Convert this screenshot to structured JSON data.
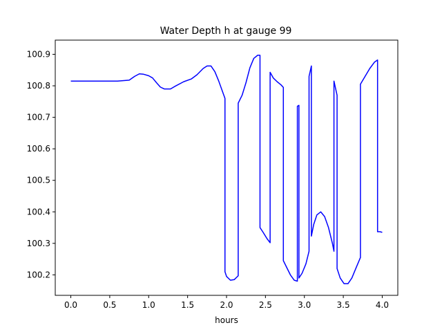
{
  "chart_data": {
    "type": "line",
    "title": "Water Depth h at gauge 99",
    "xlabel": "hours",
    "ylabel": "",
    "xlim": [
      -0.2,
      4.2
    ],
    "ylim": [
      100.135,
      100.945
    ],
    "x_ticks": [
      0.0,
      0.5,
      1.0,
      1.5,
      2.0,
      2.5,
      3.0,
      3.5,
      4.0
    ],
    "x_tick_labels": [
      "0.0",
      "0.5",
      "1.0",
      "1.5",
      "2.0",
      "2.5",
      "3.0",
      "3.5",
      "4.0"
    ],
    "y_ticks": [
      100.2,
      100.3,
      100.4,
      100.5,
      100.6,
      100.7,
      100.8,
      100.9
    ],
    "y_tick_labels": [
      "100.2",
      "100.3",
      "100.4",
      "100.5",
      "100.6",
      "100.7",
      "100.8",
      "100.9"
    ],
    "grid": false,
    "series": [
      {
        "color": "#0000ff",
        "x": [
          0.0,
          0.3,
          0.6,
          0.75,
          0.82,
          0.88,
          0.93,
          1.0,
          1.05,
          1.1,
          1.15,
          1.2,
          1.28,
          1.35,
          1.45,
          1.55,
          1.62,
          1.7,
          1.75,
          1.8,
          1.85,
          1.9,
          1.98,
          1.98,
          2.0,
          2.05,
          2.1,
          2.15,
          2.15,
          2.2,
          2.25,
          2.3,
          2.35,
          2.4,
          2.43,
          2.43,
          2.47,
          2.52,
          2.56,
          2.56,
          2.6,
          2.65,
          2.7,
          2.73,
          2.73,
          2.77,
          2.82,
          2.87,
          2.91,
          2.91,
          2.93,
          2.93,
          2.97,
          3.02,
          3.06,
          3.06,
          3.09,
          3.09,
          3.12,
          3.16,
          3.21,
          3.26,
          3.31,
          3.36,
          3.38,
          3.38,
          3.42,
          3.42,
          3.46,
          3.51,
          3.56,
          3.61,
          3.66,
          3.72,
          3.72,
          3.78,
          3.84,
          3.9,
          3.94,
          3.94,
          3.97,
          4.0
        ],
        "y": [
          100.815,
          100.815,
          100.815,
          100.818,
          100.83,
          100.838,
          100.837,
          100.832,
          100.825,
          100.81,
          100.796,
          100.79,
          100.79,
          100.8,
          100.813,
          100.822,
          100.835,
          100.855,
          100.863,
          100.863,
          100.845,
          100.815,
          100.76,
          100.21,
          100.195,
          100.183,
          100.185,
          100.197,
          100.745,
          100.77,
          100.81,
          100.857,
          100.887,
          100.897,
          100.897,
          100.35,
          100.335,
          100.315,
          100.302,
          100.843,
          100.825,
          100.813,
          100.803,
          100.795,
          100.245,
          100.225,
          100.2,
          100.183,
          100.18,
          100.735,
          100.738,
          100.19,
          100.205,
          100.235,
          100.275,
          100.83,
          100.863,
          100.323,
          100.36,
          100.39,
          100.4,
          100.385,
          100.35,
          100.3,
          100.275,
          100.815,
          100.77,
          100.22,
          100.19,
          100.172,
          100.172,
          100.19,
          100.22,
          100.255,
          100.805,
          100.83,
          100.855,
          100.875,
          100.882,
          100.337,
          100.337,
          100.335
        ]
      }
    ]
  }
}
